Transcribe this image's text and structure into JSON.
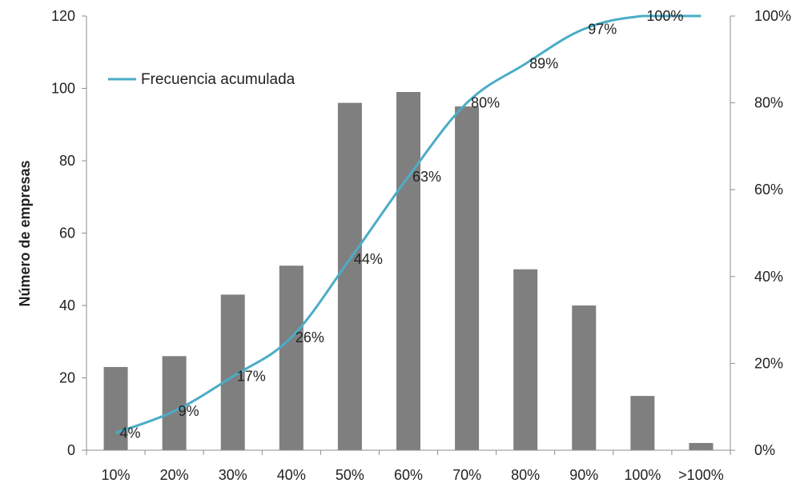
{
  "chart_data": {
    "type": "bar",
    "categories": [
      "10%",
      "20%",
      "30%",
      "40%",
      "50%",
      "60%",
      "70%",
      "80%",
      "90%",
      "100%",
      ">100%"
    ],
    "series": [
      {
        "kind": "bar",
        "axis": "left",
        "values": [
          23,
          26,
          43,
          51,
          96,
          99,
          95,
          50,
          40,
          15,
          2
        ],
        "color": "#7f7f7f"
      },
      {
        "kind": "line",
        "axis": "right",
        "name": "Frecuencia acumulada",
        "values": [
          0.04,
          0.09,
          0.17,
          0.26,
          0.44,
          0.63,
          0.8,
          0.89,
          0.97,
          1.0,
          1.0
        ],
        "labels": [
          "4%",
          "9%",
          "17%",
          "26%",
          "44%",
          "63%",
          "80%",
          "89%",
          "97%",
          "100%",
          ""
        ],
        "color": "#4bacc6"
      }
    ],
    "ylabel": "Número de empresas",
    "ylim": [
      0,
      120
    ],
    "yticks": [
      "0",
      "20",
      "40",
      "60",
      "80",
      "100",
      "120"
    ],
    "y2lim": [
      0,
      1
    ],
    "y2ticks": [
      "0%",
      "20%",
      "40%",
      "60%",
      "80%",
      "100%"
    ],
    "grid": false,
    "legend": "top-left"
  }
}
